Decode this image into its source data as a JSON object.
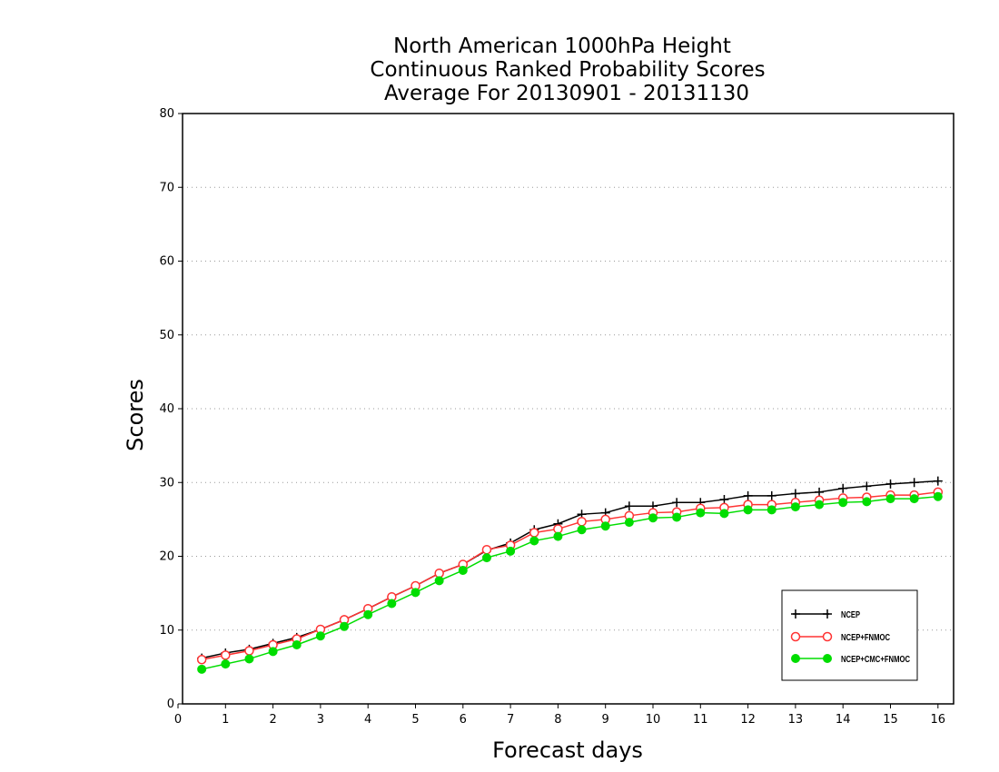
{
  "chart_data": {
    "type": "line",
    "title_lines": [
      "North American 1000hPa Height",
      "Continuous Ranked Probability Scores",
      "Average For 20130901 - 20131130"
    ],
    "xlabel": "Forecast days",
    "ylabel": "Scores",
    "xlim": [
      0,
      16.25
    ],
    "ylim": [
      0,
      80
    ],
    "xticks": [
      0,
      1,
      2,
      3,
      4,
      5,
      6,
      7,
      8,
      9,
      10,
      11,
      12,
      13,
      14,
      15,
      16
    ],
    "yticks": [
      0,
      10,
      20,
      30,
      40,
      50,
      60,
      70,
      80
    ],
    "grid": "horizontal dotted",
    "legend_position": "bottom-right",
    "x": [
      0.5,
      1.0,
      1.5,
      2.0,
      2.5,
      3.0,
      3.5,
      4.0,
      4.5,
      5.0,
      5.5,
      6.0,
      6.5,
      7.0,
      7.5,
      8.0,
      8.5,
      9.0,
      9.5,
      10.0,
      10.5,
      11.0,
      11.5,
      12.0,
      12.5,
      13.0,
      13.5,
      14.0,
      14.5,
      15.0,
      15.5,
      16.0
    ],
    "series": [
      {
        "name": "NCEP",
        "color": "#000000",
        "marker": "plus",
        "values": [
          6.2,
          6.9,
          7.4,
          8.2,
          9.0,
          10.1,
          11.4,
          12.9,
          14.5,
          16.0,
          17.7,
          18.9,
          20.8,
          21.8,
          23.6,
          24.4,
          25.7,
          25.9,
          26.8,
          26.8,
          27.3,
          27.3,
          27.7,
          28.2,
          28.2,
          28.5,
          28.7,
          29.2,
          29.5,
          29.8,
          30.0,
          30.2
        ]
      },
      {
        "name": "NCEP+FNMOC",
        "color": "#ff3333",
        "marker": "open-circle",
        "values": [
          6.0,
          6.6,
          7.2,
          8.0,
          8.8,
          10.1,
          11.4,
          12.9,
          14.5,
          16.0,
          17.7,
          18.9,
          20.9,
          21.5,
          23.2,
          23.7,
          24.7,
          25.0,
          25.5,
          25.9,
          26.0,
          26.5,
          26.6,
          27.0,
          27.0,
          27.3,
          27.6,
          27.9,
          28.0,
          28.3,
          28.3,
          28.7
        ]
      },
      {
        "name": "NCEP+CMC+FNMOC",
        "color": "#00dd00",
        "marker": "filled-circle",
        "values": [
          4.7,
          5.4,
          6.1,
          7.1,
          8.0,
          9.2,
          10.5,
          12.1,
          13.6,
          15.1,
          16.7,
          18.1,
          19.8,
          20.7,
          22.1,
          22.7,
          23.6,
          24.1,
          24.6,
          25.2,
          25.3,
          25.9,
          25.8,
          26.3,
          26.3,
          26.7,
          27.0,
          27.3,
          27.4,
          27.8,
          27.8,
          28.1
        ]
      }
    ]
  }
}
